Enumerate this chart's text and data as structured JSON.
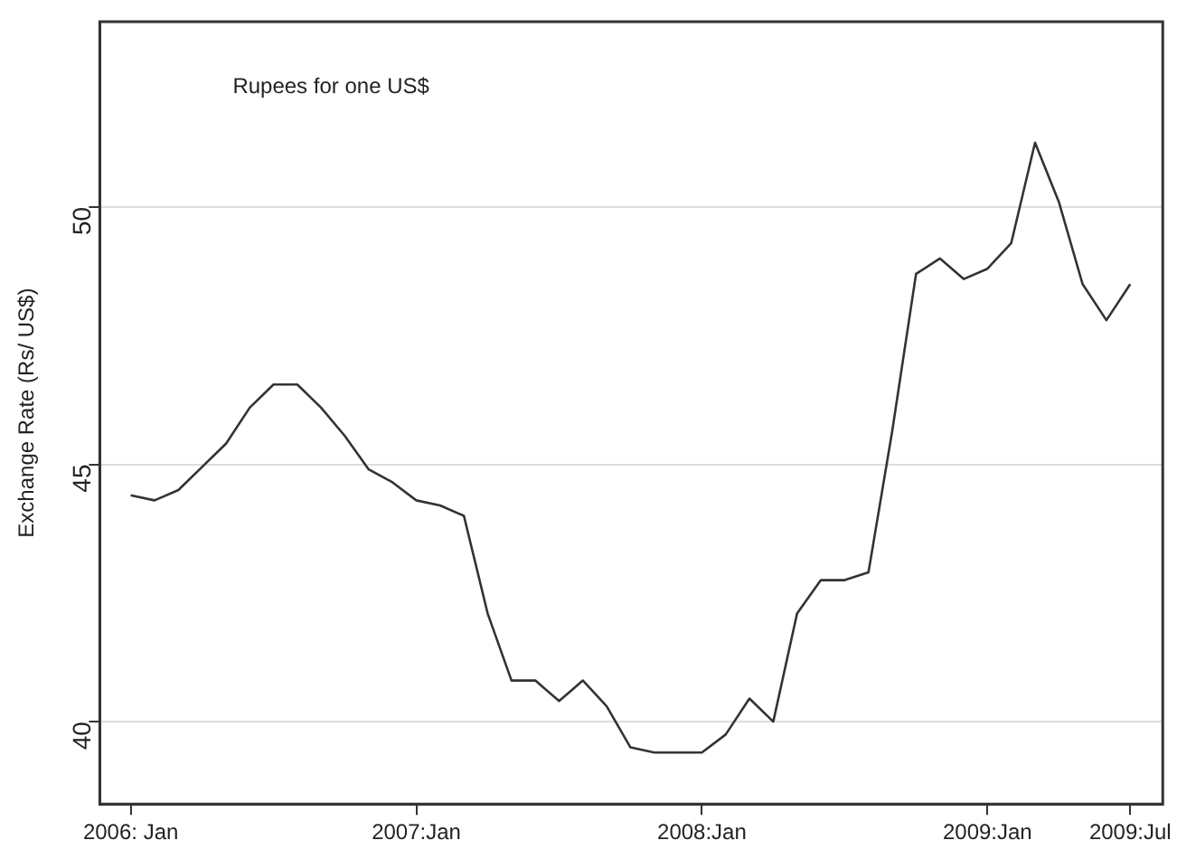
{
  "chart_data": {
    "type": "line",
    "ylabel": "Exchange Rate (Rs/ US$)",
    "annotations": [
      "Rupees for one US$"
    ],
    "x": [
      "2006-01",
      "2006-02",
      "2006-03",
      "2006-04",
      "2006-05",
      "2006-06",
      "2006-07",
      "2006-08",
      "2006-09",
      "2006-10",
      "2006-11",
      "2006-12",
      "2007-01",
      "2007-02",
      "2007-03",
      "2007-04",
      "2007-05",
      "2007-06",
      "2007-07",
      "2007-08",
      "2007-09",
      "2007-10",
      "2007-11",
      "2007-12",
      "2008-01",
      "2008-02",
      "2008-03",
      "2008-04",
      "2008-05",
      "2008-06",
      "2008-07",
      "2008-08",
      "2008-09",
      "2008-10",
      "2008-11",
      "2008-12",
      "2009-01",
      "2009-02",
      "2009-03",
      "2009-04",
      "2009-05",
      "2009-06",
      "2009-07"
    ],
    "series": [
      {
        "color": "#333333",
        "values": [
          44.4,
          44.3,
          44.5,
          44.95,
          45.4,
          46.1,
          46.55,
          46.55,
          46.1,
          45.55,
          44.9,
          44.65,
          44.3,
          44.2,
          44.0,
          42.1,
          40.8,
          40.8,
          40.4,
          40.8,
          40.3,
          39.5,
          39.4,
          39.4,
          39.4,
          39.75,
          40.45,
          40.0,
          42.1,
          42.75,
          42.75,
          42.9,
          45.65,
          48.7,
          49.0,
          48.6,
          48.8,
          49.3,
          51.25,
          50.1,
          48.5,
          47.8,
          48.5
        ]
      }
    ],
    "xlim": [
      "2005-11-22",
      "2009-08-12"
    ],
    "xticks": [
      {
        "value": "2006-01",
        "label": "2006: Jan"
      },
      {
        "value": "2007-01",
        "label": "2007:Jan"
      },
      {
        "value": "2008-01",
        "label": "2008:Jan"
      },
      {
        "value": "2009-01",
        "label": "2009:Jan"
      },
      {
        "value": "2009-07",
        "label": "2009:Jul"
      }
    ],
    "ylim": [
      38.4,
      53.6
    ],
    "yticks": [
      40,
      45,
      50
    ],
    "grid": "y",
    "legend": false,
    "marker": "none",
    "line_style": "solid"
  }
}
